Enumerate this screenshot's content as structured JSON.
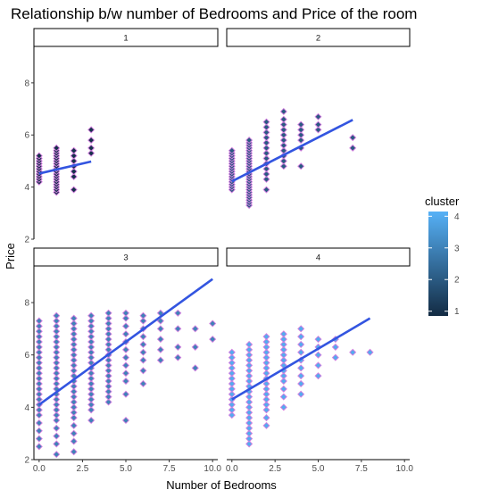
{
  "chart_data": {
    "type": "scatter",
    "title": "Relationship b/w number of Bedrooms and Price of the room",
    "xlabel": "Number of Bedrooms",
    "ylabel": "Price",
    "xlim": [
      -0.3,
      10.3
    ],
    "ylim": [
      2,
      9.4
    ],
    "x_ticks": [
      0.0,
      2.5,
      5.0,
      7.5,
      10.0
    ],
    "x_tick_labels": [
      "0.0",
      "2.5",
      "5.0",
      "7.5",
      "10.0"
    ],
    "y_ticks": [
      2,
      4,
      6,
      8
    ],
    "y_tick_labels": [
      "2",
      "4",
      "6",
      "8"
    ],
    "grid": false,
    "legend": {
      "title": "cluster",
      "position": "right",
      "min": 0.85,
      "max": 4.15,
      "ticks": [
        1,
        2,
        3,
        4
      ],
      "tick_labels": [
        "1",
        "2",
        "3",
        "4"
      ],
      "color_low": "#132b43",
      "color_high": "#56b1f7"
    },
    "point_stroke_color": "#d580e0",
    "fit_line_color": "#3355e0",
    "facets": [
      {
        "label": "1",
        "cluster_value": 1,
        "fit_line": {
          "x": [
            0,
            3
          ],
          "y": [
            4.52,
            4.98
          ]
        },
        "points": [
          {
            "x": 0,
            "y_values": [
              4.2,
              4.3,
              4.4,
              4.5,
              4.6,
              4.7,
              4.8,
              4.9,
              5.0,
              5.1,
              5.2
            ]
          },
          {
            "x": 1,
            "y_values": [
              3.8,
              3.9,
              4.0,
              4.1,
              4.2,
              4.3,
              4.4,
              4.5,
              4.6,
              4.7,
              4.8,
              4.9,
              5.0,
              5.1,
              5.2,
              5.3,
              5.4,
              5.5
            ]
          },
          {
            "x": 2,
            "y_values": [
              3.9,
              4.4,
              4.6,
              4.8,
              5.0,
              5.2,
              5.4
            ]
          },
          {
            "x": 3,
            "y_values": [
              5.3,
              5.5,
              5.8,
              6.2
            ]
          }
        ]
      },
      {
        "label": "2",
        "cluster_value": 2,
        "fit_line": {
          "x": [
            0,
            7
          ],
          "y": [
            4.22,
            6.58
          ]
        },
        "points": [
          {
            "x": 0,
            "y_values": [
              3.9,
              4.0,
              4.1,
              4.2,
              4.3,
              4.4,
              4.5,
              4.6,
              4.7,
              4.8,
              4.9,
              5.0,
              5.1,
              5.2,
              5.3,
              5.4
            ]
          },
          {
            "x": 1,
            "y_values": [
              3.3,
              3.4,
              3.5,
              3.6,
              3.7,
              3.8,
              3.9,
              4.0,
              4.1,
              4.2,
              4.3,
              4.4,
              4.5,
              4.6,
              4.7,
              4.8,
              4.9,
              5.0,
              5.1,
              5.2,
              5.3,
              5.4,
              5.5,
              5.6,
              5.7,
              5.8
            ]
          },
          {
            "x": 2,
            "y_values": [
              3.9,
              4.3,
              4.5,
              4.7,
              4.9,
              5.1,
              5.3,
              5.5,
              5.7,
              5.9,
              6.1,
              6.3,
              6.5
            ]
          },
          {
            "x": 3,
            "y_values": [
              4.8,
              5.0,
              5.2,
              5.4,
              5.6,
              5.8,
              6.0,
              6.2,
              6.4,
              6.6,
              6.9
            ]
          },
          {
            "x": 4,
            "y_values": [
              4.8,
              5.5,
              5.8,
              6.0,
              6.2,
              6.4
            ]
          },
          {
            "x": 5,
            "y_values": [
              6.2,
              6.4,
              6.7
            ]
          },
          {
            "x": 7,
            "y_values": [
              5.5,
              5.9
            ]
          }
        ]
      },
      {
        "label": "3",
        "cluster_value": 3,
        "fit_line": {
          "x": [
            0,
            10
          ],
          "y": [
            4.1,
            8.9
          ]
        },
        "points": [
          {
            "x": 0,
            "y_values": [
              2.5,
              2.8,
              3.1,
              3.4,
              3.7,
              3.9,
              4.1,
              4.3,
              4.5,
              4.7,
              4.9,
              5.1,
              5.3,
              5.5,
              5.7,
              5.9,
              6.1,
              6.3,
              6.5,
              6.7,
              6.9,
              7.1,
              7.3
            ]
          },
          {
            "x": 1,
            "y_values": [
              2.2,
              2.6,
              2.9,
              3.2,
              3.5,
              3.7,
              3.9,
              4.1,
              4.3,
              4.5,
              4.7,
              4.9,
              5.1,
              5.3,
              5.5,
              5.7,
              5.9,
              6.1,
              6.3,
              6.5,
              6.7,
              6.9,
              7.1,
              7.3,
              7.5
            ]
          },
          {
            "x": 2,
            "y_values": [
              2.3,
              2.7,
              3.0,
              3.3,
              3.6,
              3.8,
              4.0,
              4.2,
              4.4,
              4.6,
              4.8,
              5.0,
              5.2,
              5.4,
              5.6,
              5.8,
              6.0,
              6.2,
              6.4,
              6.6,
              6.8,
              7.0,
              7.2,
              7.4
            ]
          },
          {
            "x": 3,
            "y_values": [
              3.5,
              3.9,
              4.1,
              4.3,
              4.5,
              4.7,
              4.9,
              5.1,
              5.3,
              5.5,
              5.7,
              5.9,
              6.1,
              6.3,
              6.5,
              6.7,
              6.9,
              7.1,
              7.3,
              7.5
            ]
          },
          {
            "x": 4,
            "y_values": [
              4.2,
              4.4,
              4.6,
              4.8,
              5.0,
              5.2,
              5.4,
              5.6,
              5.8,
              6.0,
              6.2,
              6.4,
              6.6,
              6.8,
              7.0,
              7.2,
              7.4,
              7.6
            ]
          },
          {
            "x": 5,
            "y_values": [
              3.5,
              4.5,
              5.0,
              5.3,
              5.6,
              5.9,
              6.2,
              6.5,
              6.8,
              7.1,
              7.4,
              7.6
            ]
          },
          {
            "x": 6,
            "y_values": [
              4.9,
              5.4,
              5.8,
              6.1,
              6.4,
              6.7,
              7.0,
              7.3,
              7.5
            ]
          },
          {
            "x": 7,
            "y_values": [
              5.8,
              6.2,
              6.6,
              7.0,
              7.3,
              7.6
            ]
          },
          {
            "x": 8,
            "y_values": [
              5.9,
              6.3,
              7.0,
              7.6
            ]
          },
          {
            "x": 9,
            "y_values": [
              5.5,
              6.3,
              7.0
            ]
          },
          {
            "x": 10,
            "y_values": [
              6.6,
              7.2
            ]
          }
        ]
      },
      {
        "label": "4",
        "cluster_value": 4,
        "fit_line": {
          "x": [
            0,
            8
          ],
          "y": [
            4.3,
            7.4
          ]
        },
        "points": [
          {
            "x": 0,
            "y_values": [
              3.7,
              3.9,
              4.1,
              4.3,
              4.5,
              4.7,
              4.9,
              5.1,
              5.3,
              5.5,
              5.7,
              5.9,
              6.1
            ]
          },
          {
            "x": 1,
            "y_values": [
              2.6,
              2.8,
              3.0,
              3.2,
              3.4,
              3.6,
              3.8,
              4.0,
              4.2,
              4.4,
              4.6,
              4.8,
              5.0,
              5.2,
              5.4,
              5.6,
              5.8,
              6.0,
              6.2,
              6.4
            ]
          },
          {
            "x": 2,
            "y_values": [
              3.3,
              3.6,
              3.9,
              4.1,
              4.3,
              4.5,
              4.7,
              4.9,
              5.1,
              5.3,
              5.5,
              5.7,
              5.9,
              6.1,
              6.3,
              6.5,
              6.7
            ]
          },
          {
            "x": 3,
            "y_values": [
              4.0,
              4.4,
              4.7,
              5.0,
              5.2,
              5.4,
              5.6,
              5.8,
              6.0,
              6.2,
              6.4,
              6.6,
              6.8
            ]
          },
          {
            "x": 4,
            "y_values": [
              4.5,
              4.9,
              5.2,
              5.5,
              5.8,
              6.1,
              6.4,
              6.7,
              7.0
            ]
          },
          {
            "x": 5,
            "y_values": [
              5.2,
              5.6,
              6.0,
              6.3,
              6.6
            ]
          },
          {
            "x": 6,
            "y_values": [
              5.9,
              6.3,
              6.6
            ]
          },
          {
            "x": 7,
            "y_values": [
              6.1
            ]
          },
          {
            "x": 8,
            "y_values": [
              6.1
            ]
          }
        ]
      }
    ]
  }
}
